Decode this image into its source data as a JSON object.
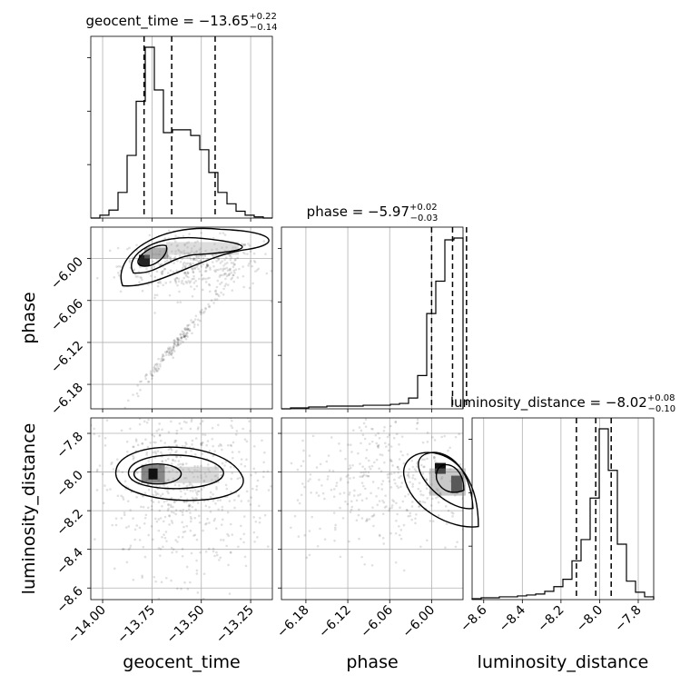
{
  "chart_data": {
    "type": "corner",
    "parameters": [
      "geocent_time",
      "phase",
      "luminosity_distance"
    ],
    "axis_labels": [
      "geocent_time",
      "phase",
      "luminosity_distance"
    ],
    "titles": [
      {
        "param": "geocent_time",
        "text": "geocent_time = −13.65",
        "sup": "+0.22",
        "sub": "−0.14",
        "median": -13.65,
        "plus": 0.22,
        "minus": 0.14
      },
      {
        "param": "phase",
        "text": "phase = −5.97",
        "sup": "+0.02",
        "sub": "−0.03",
        "median": -5.97,
        "plus": 0.02,
        "minus": 0.03
      },
      {
        "param": "luminosity_distance",
        "text": "luminosity_distance = −8.02",
        "sup": "+0.08",
        "sub": "−0.10",
        "median": -8.02,
        "plus": 0.08,
        "minus": 0.1
      }
    ],
    "ranges": {
      "geocent_time": [
        -14.06,
        -13.14
      ],
      "phase": [
        -6.215,
        -5.955
      ],
      "luminosity_distance": [
        -8.66,
        -7.72
      ]
    },
    "ticks": {
      "geocent_time": [
        -14.0,
        -13.75,
        -13.5,
        -13.25
      ],
      "phase": [
        -6.18,
        -6.12,
        -6.06,
        -6.0
      ],
      "luminosity_distance": [
        -8.6,
        -8.4,
        -8.2,
        -8.0,
        -7.8
      ]
    },
    "tick_labels": {
      "geocent_time": [
        "−14.00",
        "−13.75",
        "−13.50",
        "−13.25"
      ],
      "phase": [
        "−6.18",
        "−6.12",
        "−6.06",
        "−6.00"
      ],
      "luminosity_distance": [
        "−8.6",
        "−8.4",
        "−8.2",
        "−8.0",
        "−7.8"
      ]
    },
    "histograms": {
      "geocent_time": {
        "edges": [
          -14.06,
          -14.014,
          -13.968,
          -13.922,
          -13.876,
          -13.83,
          -13.784,
          -13.738,
          -13.692,
          -13.646,
          -13.6,
          -13.554,
          -13.508,
          -13.462,
          -13.416,
          -13.37,
          -13.324,
          -13.278,
          -13.232,
          -13.186,
          -13.14
        ],
        "counts": [
          0,
          5,
          14,
          45,
          110,
          205,
          300,
          225,
          150,
          155,
          155,
          145,
          120,
          80,
          45,
          25,
          12,
          5,
          2,
          0
        ]
      },
      "phase": {
        "edges": [
          -6.215,
          -6.202,
          -6.189,
          -6.176,
          -6.163,
          -6.15,
          -6.137,
          -6.124,
          -6.111,
          -6.098,
          -6.085,
          -6.072,
          -6.059,
          -6.046,
          -6.033,
          -6.02,
          -6.007,
          -5.994,
          -5.981,
          -5.968,
          -5.955
        ],
        "counts": [
          0,
          1,
          1,
          2,
          2,
          3,
          3,
          3,
          3,
          4,
          4,
          4,
          5,
          6,
          12,
          37,
          106,
          142,
          188,
          190
        ]
      },
      "luminosity_distance": {
        "edges": [
          -8.66,
          -8.613,
          -8.566,
          -8.519,
          -8.472,
          -8.425,
          -8.378,
          -8.331,
          -8.284,
          -8.237,
          -8.19,
          -8.143,
          -8.096,
          -8.049,
          -8.002,
          -7.955,
          -7.908,
          -7.861,
          -7.814,
          -7.767,
          -7.72
        ],
        "counts": [
          1,
          2,
          2,
          3,
          3,
          4,
          5,
          6,
          9,
          14,
          22,
          42,
          65,
          110,
          185,
          140,
          60,
          20,
          8,
          3
        ]
      }
    },
    "quantile_lines": {
      "geocent_time": [
        -13.79,
        -13.65,
        -13.43
      ],
      "phase": [
        -6.0,
        -5.97,
        -5.95
      ],
      "luminosity_distance": [
        -8.12,
        -8.02,
        -7.94
      ]
    },
    "scatter_clouds": [
      {
        "panel": "phase_vs_geocent_time",
        "x_mean": -13.55,
        "x_sd": 0.18,
        "y_mean": -6.01,
        "y_sd": 0.02,
        "n": 420
      },
      {
        "panel": "phase_vs_geocent_time",
        "x_mean": -13.62,
        "x_sd": 0.12,
        "y_mean": -6.12,
        "y_sd": 0.03,
        "n": 180,
        "correlated": true
      },
      {
        "panel": "luminosity_distance_vs_geocent_time",
        "x_mean": -13.6,
        "x_sd": 0.22,
        "y_mean": -8.08,
        "y_sd": 0.22,
        "n": 650
      },
      {
        "panel": "luminosity_distance_vs_phase",
        "x_mean": -6.06,
        "x_sd": 0.07,
        "y_mean": -8.05,
        "y_sd": 0.18,
        "n": 420
      }
    ],
    "contour_levels": [
      0.39,
      0.86,
      0.99
    ],
    "grid": true
  }
}
